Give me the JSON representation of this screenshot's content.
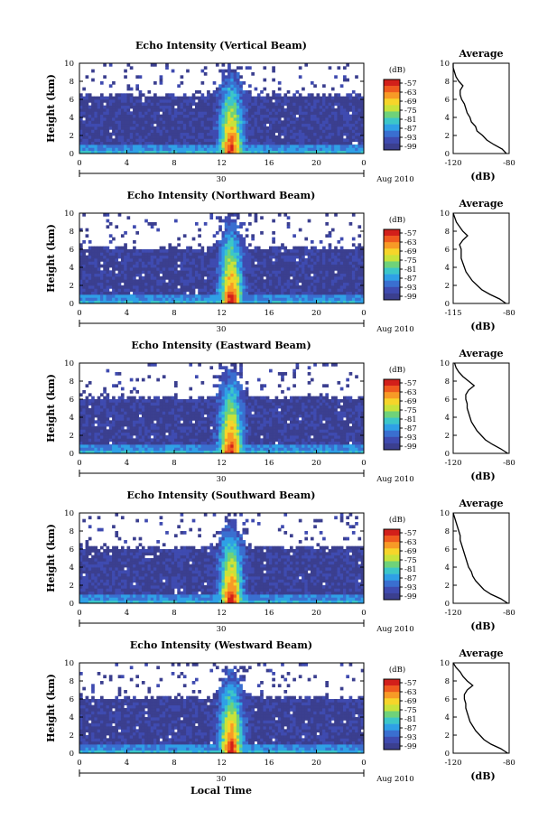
{
  "figure": {
    "x_axis_title": "Local Time",
    "date_label": "Aug 2010",
    "day_label": "30"
  },
  "colors": {
    "scale": [
      "#3b3f8f",
      "#3f4bb0",
      "#3a6fd0",
      "#2fa0e6",
      "#3cc6c8",
      "#6fd27a",
      "#c9e23a",
      "#f6d52a",
      "#f79a26",
      "#ef5a1e",
      "#d21f1a"
    ],
    "background": "#3b3f8f",
    "no_data": "#ffffff"
  },
  "chart_data": [
    {
      "type": "heatmap",
      "title": "Echo Intensity (Vertical Beam)",
      "ylabel": "Height (km)",
      "xlabel": "Local Time",
      "xlim": [
        0,
        24
      ],
      "ylim": [
        0,
        10
      ],
      "x_ticks": [
        "0",
        "4",
        "8",
        "12",
        "16",
        "20",
        "0"
      ],
      "y_ticks": [
        "0",
        "2",
        "4",
        "6",
        "8",
        "10"
      ],
      "colorbar_unit": "(dB)",
      "colorbar_ticks": [
        "-57",
        "-63",
        "-69",
        "-75",
        "-81",
        "-87",
        "-93",
        "-99"
      ],
      "profile": {
        "title": "Average",
        "xlabel": "(dB)",
        "x_ticks": [
          "-120",
          "-80"
        ],
        "xlim": [
          -120,
          -80
        ],
        "y_ticks": [
          "0",
          "2",
          "4",
          "6",
          "8",
          "10"
        ],
        "height_km": [
          0,
          0.5,
          1,
          1.5,
          2,
          2.5,
          3,
          3.5,
          4,
          4.5,
          5,
          5.5,
          6,
          6.5,
          7,
          7.5,
          8,
          8.5,
          9,
          9.5,
          10
        ],
        "values_db": [
          -82,
          -85,
          -91,
          -96,
          -99,
          -103,
          -104,
          -107,
          -108,
          -110,
          -111,
          -112,
          -114,
          -115,
          -115,
          -113,
          -116,
          -118,
          -119,
          -120,
          -120
        ]
      }
    },
    {
      "type": "heatmap",
      "title": "Echo Intensity (Northward Beam)",
      "ylabel": "Height (km)",
      "xlabel": "Local Time",
      "xlim": [
        0,
        24
      ],
      "ylim": [
        0,
        10
      ],
      "x_ticks": [
        "0",
        "4",
        "8",
        "12",
        "16",
        "20",
        "0"
      ],
      "y_ticks": [
        "0",
        "2",
        "4",
        "6",
        "8",
        "10"
      ],
      "colorbar_unit": "(dB)",
      "colorbar_ticks": [
        "-57",
        "-63",
        "-69",
        "-75",
        "-81",
        "-87",
        "-93",
        "-99"
      ],
      "profile": {
        "title": "Average",
        "xlabel": "(dB)",
        "x_ticks": [
          "-115",
          "-80"
        ],
        "xlim": [
          -115,
          -80
        ],
        "y_ticks": [
          "0",
          "2",
          "4",
          "6",
          "8",
          "10"
        ],
        "height_km": [
          0,
          0.5,
          1,
          1.5,
          2,
          2.5,
          3,
          3.5,
          4,
          4.5,
          5,
          5.5,
          6,
          6.5,
          7,
          7.5,
          8,
          8.5,
          9,
          9.5,
          10
        ],
        "values_db": [
          -82,
          -86,
          -92,
          -97,
          -100,
          -103,
          -105,
          -107,
          -108,
          -109,
          -110,
          -110,
          -110,
          -111,
          -109,
          -106,
          -109,
          -111,
          -113,
          -114,
          -115
        ]
      }
    },
    {
      "type": "heatmap",
      "title": "Echo Intensity (Eastward Beam)",
      "ylabel": "Height (km)",
      "xlabel": "Local Time",
      "xlim": [
        0,
        24
      ],
      "ylim": [
        0,
        10
      ],
      "x_ticks": [
        "0",
        "4",
        "8",
        "12",
        "16",
        "20",
        "0"
      ],
      "y_ticks": [
        "0",
        "2",
        "4",
        "6",
        "8",
        "10"
      ],
      "colorbar_unit": "(dB)",
      "colorbar_ticks": [
        "-57",
        "-63",
        "-69",
        "-75",
        "-81",
        "-87",
        "-93",
        "-99"
      ],
      "profile": {
        "title": "Average",
        "xlabel": "(dB)",
        "x_ticks": [
          "-120",
          "-80"
        ],
        "xlim": [
          -120,
          -80
        ],
        "y_ticks": [
          "0",
          "2",
          "4",
          "6",
          "8",
          "10"
        ],
        "height_km": [
          0,
          0.5,
          1,
          1.5,
          2,
          2.5,
          3,
          3.5,
          4,
          4.5,
          5,
          5.5,
          6,
          6.5,
          7,
          7.5,
          8,
          8.5,
          9,
          9.5,
          10
        ],
        "values_db": [
          -81,
          -86,
          -92,
          -97,
          -100,
          -103,
          -105,
          -107,
          -108,
          -109,
          -110,
          -110,
          -111,
          -111,
          -109,
          -105,
          -109,
          -113,
          -116,
          -118,
          -119
        ]
      }
    },
    {
      "type": "heatmap",
      "title": "Echo Intensity (Southward Beam)",
      "ylabel": "Height (km)",
      "xlabel": "Local Time",
      "xlim": [
        0,
        24
      ],
      "ylim": [
        0,
        10
      ],
      "x_ticks": [
        "0",
        "4",
        "8",
        "12",
        "16",
        "20",
        "0"
      ],
      "y_ticks": [
        "0",
        "2",
        "4",
        "6",
        "8",
        "10"
      ],
      "colorbar_unit": "(dB)",
      "colorbar_ticks": [
        "-57",
        "-63",
        "-69",
        "-75",
        "-81",
        "-87",
        "-93",
        "-99"
      ],
      "profile": {
        "title": "Average",
        "xlabel": "(dB)",
        "x_ticks": [
          "-120",
          "-80"
        ],
        "xlim": [
          -120,
          -80
        ],
        "y_ticks": [
          "0",
          "2",
          "4",
          "6",
          "8",
          "10"
        ],
        "height_km": [
          0,
          0.5,
          1,
          1.5,
          2,
          2.5,
          3,
          3.5,
          4,
          4.5,
          5,
          5.5,
          6,
          6.5,
          7,
          7.5,
          8,
          8.5,
          9,
          9.5,
          10
        ],
        "values_db": [
          -81,
          -86,
          -93,
          -98,
          -101,
          -104,
          -106,
          -107,
          -109,
          -110,
          -111,
          -112,
          -113,
          -114,
          -115,
          -115,
          -116,
          -117,
          -118,
          -119,
          -120
        ]
      }
    },
    {
      "type": "heatmap",
      "title": "Echo Intensity (Westward Beam)",
      "ylabel": "Height (km)",
      "xlabel": "Local Time",
      "xlim": [
        0,
        24
      ],
      "ylim": [
        0,
        10
      ],
      "x_ticks": [
        "0",
        "4",
        "8",
        "12",
        "16",
        "20",
        "0"
      ],
      "y_ticks": [
        "0",
        "2",
        "4",
        "6",
        "8",
        "10"
      ],
      "colorbar_unit": "(dB)",
      "colorbar_ticks": [
        "-57",
        "-63",
        "-69",
        "-75",
        "-81",
        "-87",
        "-93",
        "-99"
      ],
      "profile": {
        "title": "Average",
        "xlabel": "(dB)",
        "x_ticks": [
          "-120",
          "-80"
        ],
        "xlim": [
          -120,
          -80
        ],
        "y_ticks": [
          "0",
          "2",
          "4",
          "6",
          "8",
          "10"
        ],
        "height_km": [
          0,
          0.5,
          1,
          1.5,
          2,
          2.5,
          3,
          3.5,
          4,
          4.5,
          5,
          5.5,
          6,
          6.5,
          7,
          7.5,
          8,
          8.5,
          9,
          9.5,
          10
        ],
        "values_db": [
          -81,
          -86,
          -93,
          -98,
          -101,
          -104,
          -106,
          -108,
          -109,
          -110,
          -111,
          -111,
          -112,
          -112,
          -110,
          -106,
          -110,
          -113,
          -115,
          -118,
          -120
        ]
      }
    }
  ]
}
